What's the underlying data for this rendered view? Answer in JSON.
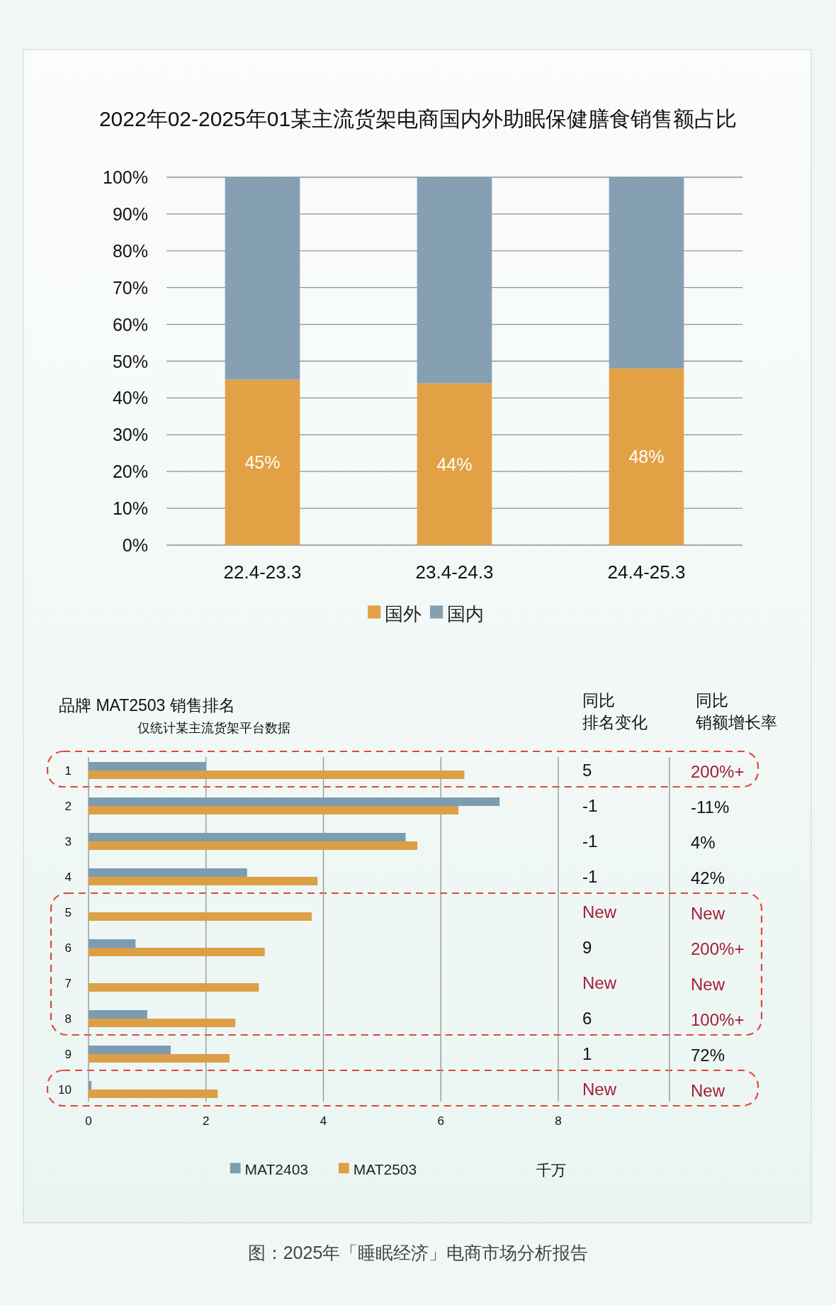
{
  "chart_data": [
    {
      "type": "bar",
      "title": "2022年02-2025年01某主流货架电商国内外助眠保健膳食销售额占比",
      "categories": [
        "22.4-23.3",
        "23.4-24.3",
        "24.4-25.3"
      ],
      "stacked": true,
      "series": [
        {
          "name": "国外",
          "color": "#e2a144",
          "values": [
            45,
            44,
            48
          ],
          "value_labels": [
            "45%",
            "44%",
            "48%"
          ]
        },
        {
          "name": "国内",
          "color": "#84a0b2",
          "values": [
            55,
            56,
            52
          ]
        }
      ],
      "ylim": [
        0,
        100
      ],
      "yticks": [
        {
          "value": 0,
          "label": "0%"
        },
        {
          "value": 10,
          "label": "10%"
        },
        {
          "value": 20,
          "label": "20%"
        },
        {
          "value": 30,
          "label": "30%"
        },
        {
          "value": 40,
          "label": "40%"
        },
        {
          "value": 50,
          "label": "50%"
        },
        {
          "value": 60,
          "label": "60%"
        },
        {
          "value": 70,
          "label": "70%"
        },
        {
          "value": 80,
          "label": "80%"
        },
        {
          "value": 90,
          "label": "90%"
        },
        {
          "value": 100,
          "label": "100%"
        }
      ],
      "grid": "y",
      "legend": "bottom"
    },
    {
      "type": "bar",
      "orientation": "horizontal",
      "title": "品牌 MAT2503 销售排名",
      "subtitle": "仅统计某主流货架平台数据",
      "xlabel": "千万",
      "categories": [
        "1",
        "2",
        "3",
        "4",
        "5",
        "6",
        "7",
        "8",
        "9",
        "10"
      ],
      "series": [
        {
          "name": "MAT2403",
          "color": "#7d9cb0",
          "values": [
            2.0,
            7.0,
            5.4,
            2.7,
            null,
            0.8,
            null,
            1.0,
            1.4,
            0.05
          ]
        },
        {
          "name": "MAT2503",
          "color": "#dd9f45",
          "values": [
            6.4,
            6.3,
            5.6,
            3.9,
            3.8,
            3.0,
            2.9,
            2.5,
            2.4,
            2.2
          ]
        }
      ],
      "xlim": [
        0,
        8
      ],
      "xticks": [
        0,
        2,
        4,
        6,
        8
      ],
      "grid": "x",
      "legend": "bottom",
      "annotations": [
        "同比",
        "排名变化",
        "同比",
        "销额增长率",
        "5",
        "-1",
        "-1",
        "-1",
        "New",
        "9",
        "New",
        "6",
        "1",
        "New",
        "200%+",
        "-11%",
        "4%",
        "42%",
        "New",
        "200%+",
        "New",
        "100%+",
        "72%",
        "New",
        "图：2025年「睡眠经济」电商市场分析报告"
      ]
    }
  ]
}
